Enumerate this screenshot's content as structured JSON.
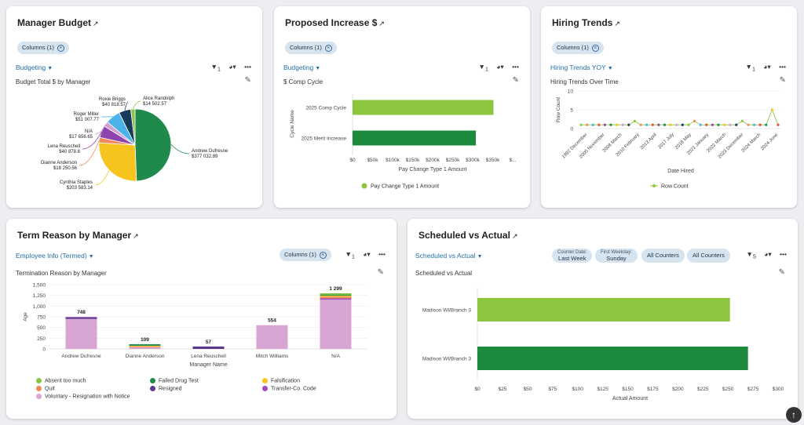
{
  "colors": {
    "accent": "#1f6fa6",
    "pill_bg": "#d6e4ef"
  },
  "manager_budget": {
    "title": "Manager Budget",
    "columns_pill": "Columns (1)",
    "dropdown": "Budgeting",
    "filter_count": "1",
    "subtitle": "Budget Total $ by Manager",
    "chart_data": {
      "type": "pie",
      "title": "Budget Total $ by Manager",
      "slices": [
        {
          "name": "Andrew Dufresne",
          "value": 377032.89,
          "label": "$377 032.89",
          "color": "#1f8a4c"
        },
        {
          "name": "Cynthia Staples",
          "value": 203583.14,
          "label": "$203 583.14",
          "color": "#f7c41f"
        },
        {
          "name": "Dianne Anderson",
          "value": 18250.56,
          "label": "$18 250.56",
          "color": "#f08a5d"
        },
        {
          "name": "Lena Reuschell",
          "value": 40878.6,
          "label": "$40 878.6",
          "color": "#8e44ad"
        },
        {
          "name": "N/A",
          "value": 17656.65,
          "label": "$17 656.65",
          "color": "#d4a0d0"
        },
        {
          "name": "Roger Miller",
          "value": 51007.77,
          "label": "$51 007.77",
          "color": "#4ab3e8"
        },
        {
          "name": "Roxie Briggs",
          "value": 40818.57,
          "label": "$40 818.57",
          "color": "#173b5c"
        },
        {
          "name": "Alice Randolph",
          "value": 14502.57,
          "label": "$14 502.57",
          "color": "#8bc34a"
        }
      ]
    }
  },
  "proposed_increase": {
    "title": "Proposed Increase $",
    "columns_pill": "Columns (1)",
    "dropdown": "Budgeting",
    "filter_count": "1",
    "subtitle": "$ Comp Cycle",
    "chart_data": {
      "type": "bar",
      "orientation": "horizontal",
      "title": "$ Comp Cycle",
      "categories": [
        "2025 Comp Cycle",
        "2025 Merit Increase"
      ],
      "values": [
        352000,
        308000
      ],
      "colors": [
        "#8cc63f",
        "#1e8a3e"
      ],
      "xlabel": "Pay Change Type 1 Amount",
      "ylabel": "Cycle Name",
      "xticks": [
        "$0",
        "$50k",
        "$100k",
        "$150k",
        "$200k",
        "$250k",
        "$300k",
        "$350k",
        "$..."
      ],
      "xlim": [
        0,
        400000
      ],
      "legend": "Pay Change Type 1 Amount"
    }
  },
  "hiring_trends": {
    "title": "Hiring Trends",
    "columns_pill": "Columns (1)",
    "dropdown": "Hiring Trends YOY",
    "filter_count": "1",
    "subtitle": "Hiring Trends Over Time",
    "chart_data": {
      "type": "line",
      "title": "Hiring Trends Over Time",
      "xlabel": "Date Hired",
      "ylabel": "Row Count",
      "ylim": [
        0,
        10
      ],
      "yticks": [
        "0",
        "5",
        "10"
      ],
      "xticks": [
        "1992 December",
        "2005 November",
        "2008 March",
        "2010 February",
        "2013 April",
        "2017 July",
        "2018 May",
        "2021 January",
        "2022 March",
        "2023 December",
        "2024 March",
        "2024 June"
      ],
      "values": [
        1,
        1,
        1,
        1,
        1,
        1,
        1,
        1,
        1,
        2,
        1,
        1,
        1,
        1,
        1,
        1,
        1,
        1,
        1,
        2,
        1,
        1,
        1,
        1,
        1,
        1,
        1,
        2,
        1,
        1,
        1,
        1,
        5,
        1
      ],
      "point_colors": [
        "#8cc63f",
        "#f08a5d",
        "#4ab3e8",
        "#e74c3c",
        "#8e44ad",
        "#1f8a4c",
        "#f7c41f",
        "#d4a0d0",
        "#173b5c",
        "#8cc63f",
        "#f08a5d",
        "#4ab3e8",
        "#e74c3c",
        "#8e44ad",
        "#1f8a4c",
        "#f7c41f",
        "#d4a0d0",
        "#173b5c",
        "#8cc63f",
        "#f08a5d",
        "#4ab3e8",
        "#e74c3c",
        "#8e44ad",
        "#1f8a4c",
        "#f7c41f",
        "#d4a0d0",
        "#173b5c",
        "#8cc63f",
        "#f08a5d",
        "#4ab3e8",
        "#e74c3c",
        "#1f8a4c",
        "#f7c41f",
        "#e74c3c"
      ],
      "legend": "Row Count",
      "line_color": "#8cc63f"
    }
  },
  "term_reason": {
    "title": "Term Reason by Manager",
    "columns_pill": "Columns (1)",
    "dropdown": "Employee Info (Termed)",
    "filter_count": "1",
    "subtitle": "Termination Reason by Manager",
    "chart_data": {
      "type": "bar",
      "stacked": true,
      "title": "Termination Reason by Manager",
      "xlabel": "Manager Name",
      "ylabel": "Age",
      "ylim": [
        0,
        1500
      ],
      "yticks": [
        "0",
        "250",
        "500",
        "750",
        "1,000",
        "1,250",
        "1,500"
      ],
      "categories": [
        "Andrew Dufresne",
        "Dianne Anderson",
        "Lena Reuschell",
        "Mitch Williams",
        "N/A"
      ],
      "totals": [
        "748",
        "109",
        "57",
        "554",
        "1 299"
      ],
      "series": [
        {
          "name": "Voluntary - Resignation with Notice",
          "color": "#d8a5d2",
          "values": [
            700,
            40,
            0,
            554,
            1150
          ]
        },
        {
          "name": "Resigned",
          "color": "#5b3a8c",
          "values": [
            35,
            0,
            57,
            0,
            0
          ]
        },
        {
          "name": "Transfer-Co. Code",
          "color": "#a04bc0",
          "values": [
            13,
            0,
            0,
            0,
            30
          ]
        },
        {
          "name": "Quit",
          "color": "#f08a5d",
          "values": [
            0,
            17,
            0,
            0,
            40
          ]
        },
        {
          "name": "Falsification",
          "color": "#f7c41f",
          "values": [
            0,
            17,
            0,
            0,
            25
          ]
        },
        {
          "name": "Failed Drug Test",
          "color": "#1f8a4c",
          "values": [
            0,
            35,
            0,
            0,
            24
          ]
        },
        {
          "name": "Absent too much",
          "color": "#8cc63f",
          "values": [
            0,
            0,
            0,
            0,
            30
          ]
        }
      ],
      "legend": [
        {
          "name": "Absent too much",
          "color": "#8cc63f"
        },
        {
          "name": "Failed Drug Test",
          "color": "#1f8a4c"
        },
        {
          "name": "Falsification",
          "color": "#f7c41f"
        },
        {
          "name": "Quit",
          "color": "#f08a5d"
        },
        {
          "name": "Resigned",
          "color": "#5b3a8c"
        },
        {
          "name": "Transfer-Co. Code",
          "color": "#a04bc0"
        },
        {
          "name": "Voluntary - Resignation with Notice",
          "color": "#d8a5d2"
        }
      ]
    }
  },
  "scheduled_actual": {
    "title": "Scheduled vs Actual",
    "dropdown": "Scheduled vs Actual",
    "counter_date_label": "Counter Date:",
    "counter_date_value": "Last Week",
    "first_weekday_label": "First Weekday:",
    "first_weekday_value": "Sunday",
    "counters_pill_1": "All Counters",
    "counters_pill_2": "All Counters",
    "filter_count": "5",
    "subtitle": "Scheduled vs Actual",
    "chart_data": {
      "type": "bar",
      "orientation": "horizontal",
      "title": "Scheduled vs Actual",
      "categories": [
        "Madison WI/Branch 3",
        "Madison WI/Branch 3"
      ],
      "values": [
        252,
        270
      ],
      "colors": [
        "#8cc63f",
        "#1e8a3e"
      ],
      "xlabel": "Actual Amount",
      "xlim": [
        0,
        300
      ],
      "xticks": [
        "$0",
        "$25",
        "$50",
        "$75",
        "$100",
        "$125",
        "$150",
        "$175",
        "$200",
        "$225",
        "$250",
        "$275",
        "$300"
      ]
    }
  },
  "icons": {
    "external": "arrow-up-right-icon",
    "filter": "filter-icon",
    "chart_type": "pie-chart-icon",
    "more": "more-icon",
    "edit": "pencil-icon",
    "scroll_top": "arrow-up-icon"
  }
}
